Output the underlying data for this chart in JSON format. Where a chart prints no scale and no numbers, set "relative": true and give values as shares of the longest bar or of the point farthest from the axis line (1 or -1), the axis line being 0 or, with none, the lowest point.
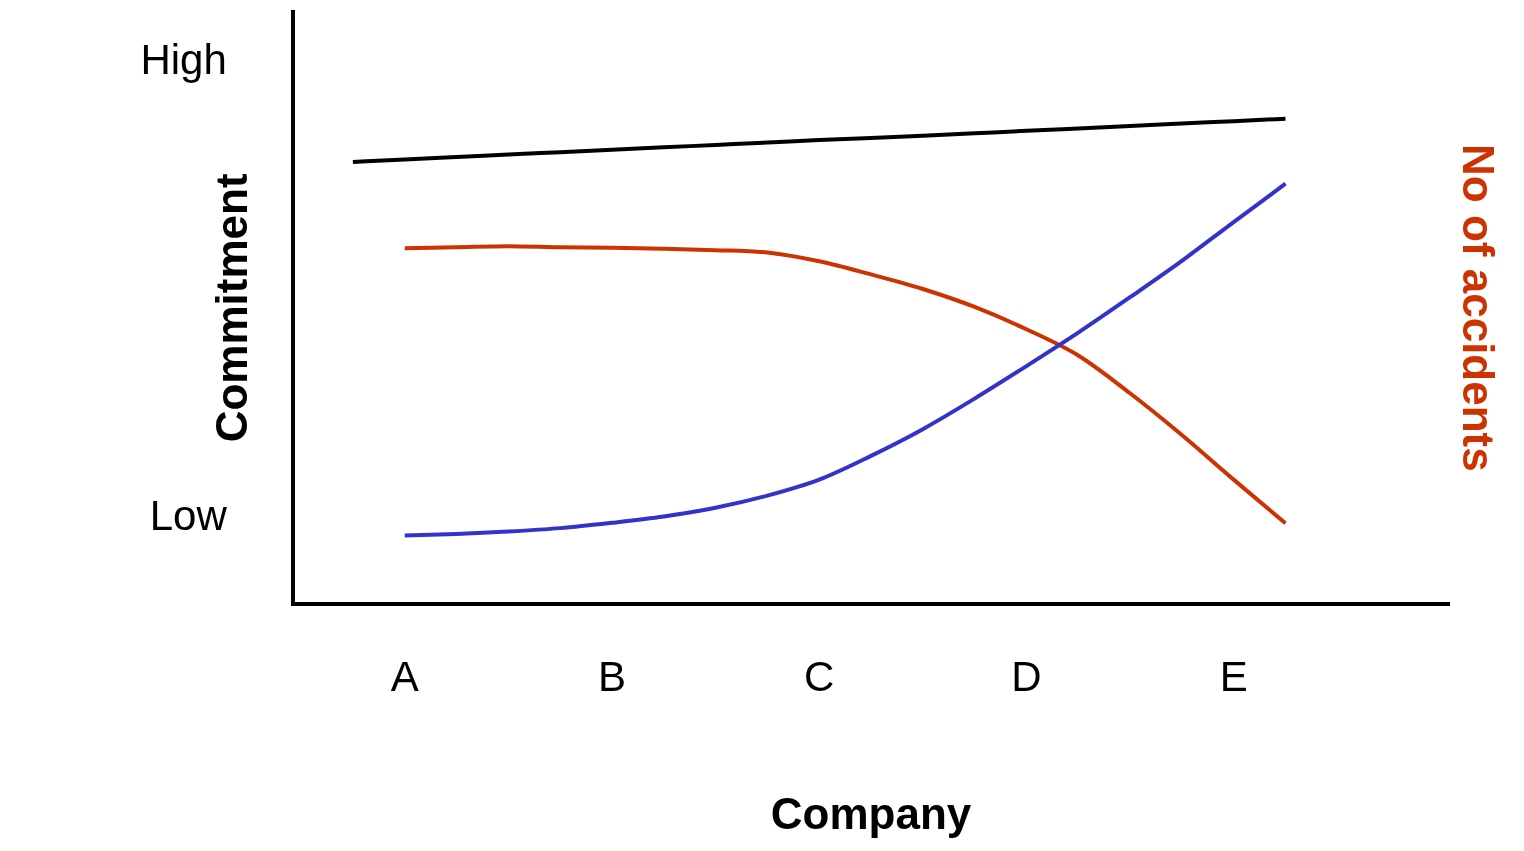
{
  "chart_data": {
    "type": "line",
    "xlabel": "Company",
    "ylabel": "Commitment",
    "y2label": "No of accidents",
    "relative": true,
    "categories": [
      null,
      "A",
      null,
      null,
      null,
      "B",
      null,
      null,
      null,
      "C",
      null,
      null,
      null,
      "D",
      null,
      null,
      null,
      "E",
      null
    ],
    "annotations": [
      "High",
      "Low"
    ],
    "grid": false,
    "legend": false,
    "marker": "none",
    "line_style": "solid",
    "series": [
      {
        "color": "#000000",
        "values": [
          0.911,
          0.916,
          0.921,
          0.926,
          0.931,
          0.936,
          0.941,
          0.946,
          0.951,
          0.956,
          0.96,
          0.965,
          0.97,
          0.975,
          0.98,
          0.985,
          0.99,
          0.995,
          1.0
        ]
      },
      {
        "color": "#3333cc",
        "values": [
          null,
          0.141,
          0.144,
          0.149,
          0.156,
          0.167,
          0.18,
          0.198,
          0.223,
          0.256,
          0.305,
          0.36,
          0.423,
          0.49,
          0.559,
          0.632,
          0.707,
          0.787,
          0.866
        ]
      },
      {
        "color": "#cc3300",
        "values": [
          null,
          0.733,
          0.735,
          0.737,
          0.735,
          0.734,
          0.732,
          0.729,
          0.724,
          0.706,
          0.679,
          0.649,
          0.612,
          0.566,
          0.512,
          0.434,
          0.348,
          0.256,
          0.166
        ]
      }
    ]
  }
}
